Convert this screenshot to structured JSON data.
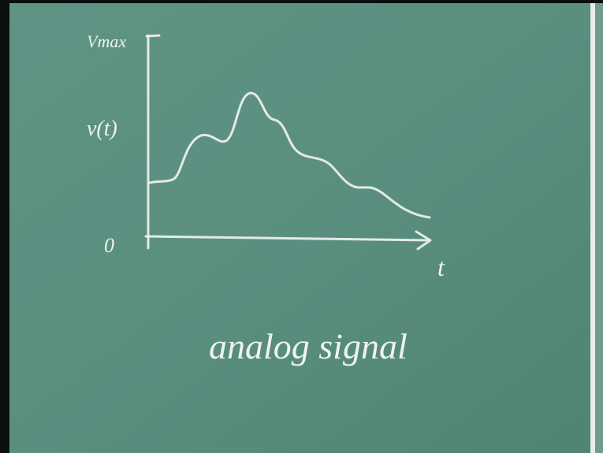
{
  "axis": {
    "y_max_label": "Vmax",
    "y_label": "v(t)",
    "origin_label": "0",
    "x_label": "t"
  },
  "caption": "analog signal"
}
